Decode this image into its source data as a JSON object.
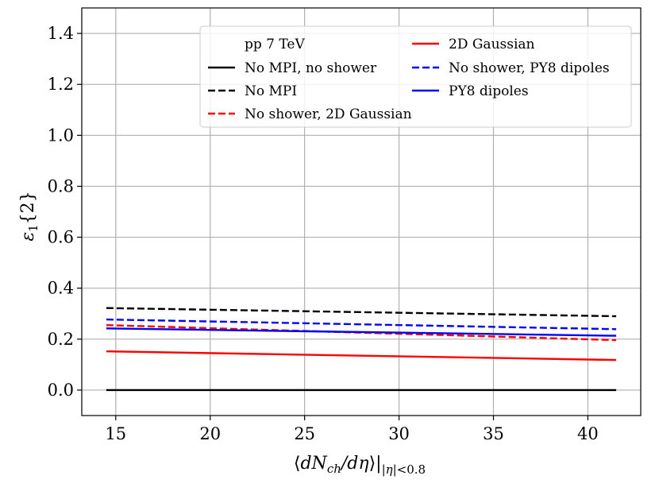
{
  "chart_data": {
    "type": "line",
    "title": "",
    "legend_title": "pp 7 TeV",
    "xlabel": "⟨dN_ch/dη⟩||η|<0.8",
    "ylabel": "ε1{2}",
    "xlim": [
      13.2,
      42.8
    ],
    "ylim": [
      -0.1,
      1.5
    ],
    "xticks": [
      15,
      20,
      25,
      30,
      35,
      40
    ],
    "yticks": [
      0.0,
      0.2,
      0.4,
      0.6,
      0.8,
      1.0,
      1.2,
      1.4
    ],
    "xtick_labels": [
      "15",
      "20",
      "25",
      "30",
      "35",
      "40"
    ],
    "ytick_labels": [
      "0.0",
      "0.2",
      "0.4",
      "0.6",
      "0.8",
      "1.0",
      "1.2",
      "1.4"
    ],
    "grid": true,
    "legend_position": "top-right",
    "series": [
      {
        "name": "No MPI, no shower",
        "color": "#000000",
        "style": "solid",
        "x": [
          14.5,
          41.5
        ],
        "values": [
          0.0,
          0.0
        ]
      },
      {
        "name": "No MPI",
        "color": "#000000",
        "style": "dashed",
        "x": [
          14.5,
          41.5
        ],
        "values": [
          0.322,
          0.29
        ]
      },
      {
        "name": "No shower, 2D Gaussian",
        "color": "#ff0000",
        "style": "dashed",
        "x": [
          14.5,
          41.5
        ],
        "values": [
          0.255,
          0.196
        ]
      },
      {
        "name": "2D Gaussian",
        "color": "#ff0000",
        "style": "solid",
        "x": [
          14.5,
          41.5
        ],
        "values": [
          0.152,
          0.118
        ]
      },
      {
        "name": "No shower, PY8 dipoles",
        "color": "#0000ff",
        "style": "dashed",
        "x": [
          14.5,
          41.5
        ],
        "values": [
          0.277,
          0.239
        ]
      },
      {
        "name": "PY8 dipoles",
        "color": "#0000ff",
        "style": "solid",
        "x": [
          14.5,
          41.5
        ],
        "values": [
          0.242,
          0.213
        ]
      }
    ]
  }
}
